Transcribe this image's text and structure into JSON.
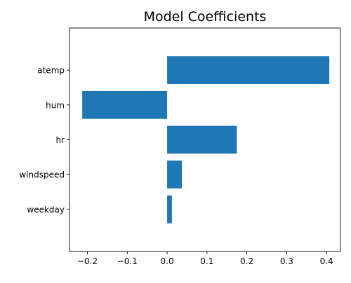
{
  "chart_data": {
    "type": "bar",
    "orientation": "horizontal",
    "title": "Model Coefficients",
    "xlabel": "",
    "ylabel": "",
    "categories": [
      "atemp",
      "hum",
      "hr",
      "windspeed",
      "weekday"
    ],
    "values": [
      0.407,
      -0.213,
      0.175,
      0.037,
      0.012
    ],
    "xlim": [
      -0.245,
      0.435
    ],
    "xticks": [
      -0.2,
      -0.1,
      0.0,
      0.1,
      0.2,
      0.3,
      0.4
    ],
    "xtick_labels": [
      "−0.2",
      "−0.1",
      "0.0",
      "0.1",
      "0.2",
      "0.3",
      "0.4"
    ],
    "bar_color": "#1f77b4",
    "grid": false,
    "legend": "none"
  }
}
